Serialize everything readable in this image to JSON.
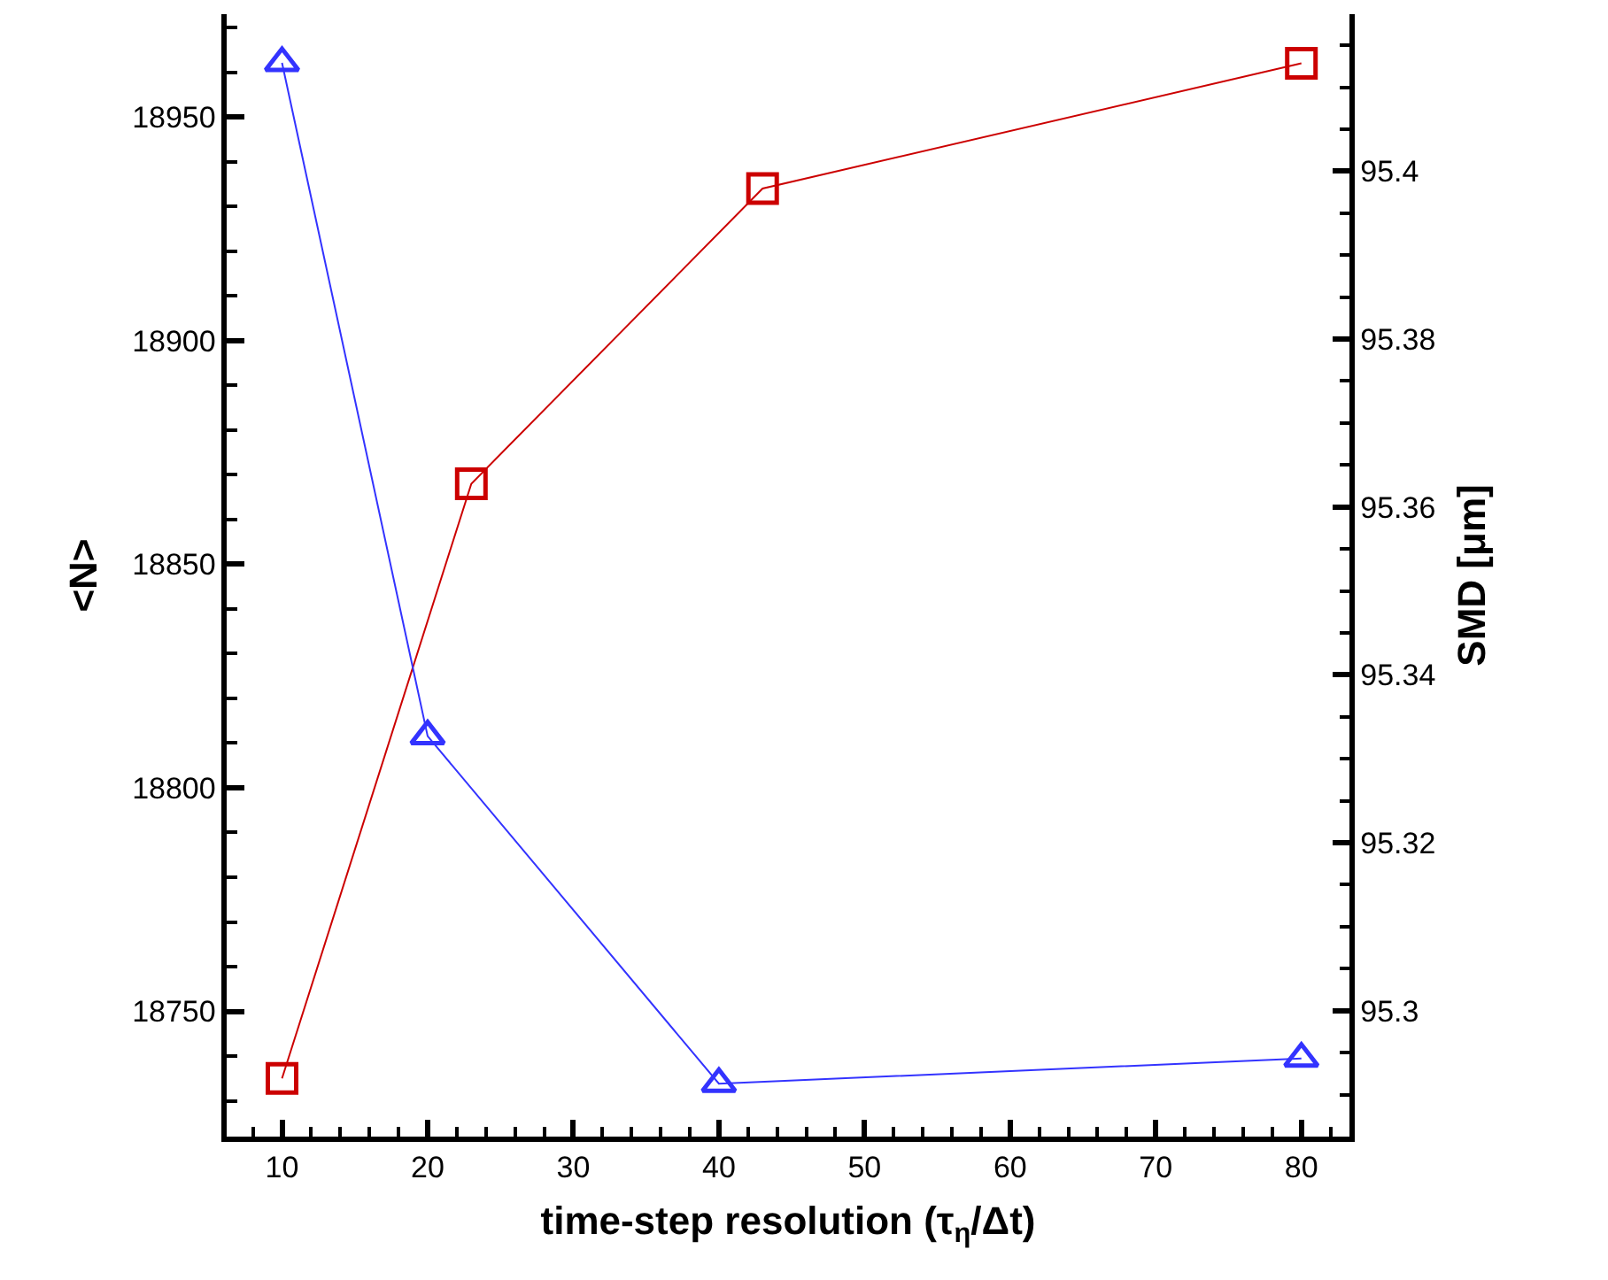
{
  "chart_data": {
    "type": "line",
    "xlabel": "time-step resolution (τ$_{η}$/Δt)",
    "ylabel": "<N>",
    "y2label": "SMD [μm]",
    "grid": false,
    "xlim": [
      6.2,
      83.3
    ],
    "xticks": [
      10,
      20,
      30,
      40,
      50,
      60,
      70,
      80
    ],
    "ylim": [
      18722,
      18973
    ],
    "yticks": [
      18750,
      18800,
      18850,
      18900,
      18950
    ],
    "y2lim": [
      95.285,
      95.4187
    ],
    "y2ticks": [
      95.3,
      95.32,
      95.34,
      95.36,
      95.38,
      95.4
    ],
    "series": [
      {
        "color": "#cc0000",
        "marker": "square",
        "x": [
          10,
          23,
          43,
          80
        ],
        "values": [
          18735,
          18868,
          18934,
          18962
        ]
      },
      {
        "color": "#3333ff",
        "marker": "triangle",
        "axis": "y2",
        "x": [
          10,
          20,
          40,
          80
        ],
        "values": [
          95.4129,
          95.3327,
          95.2913,
          95.2943
        ]
      }
    ]
  }
}
